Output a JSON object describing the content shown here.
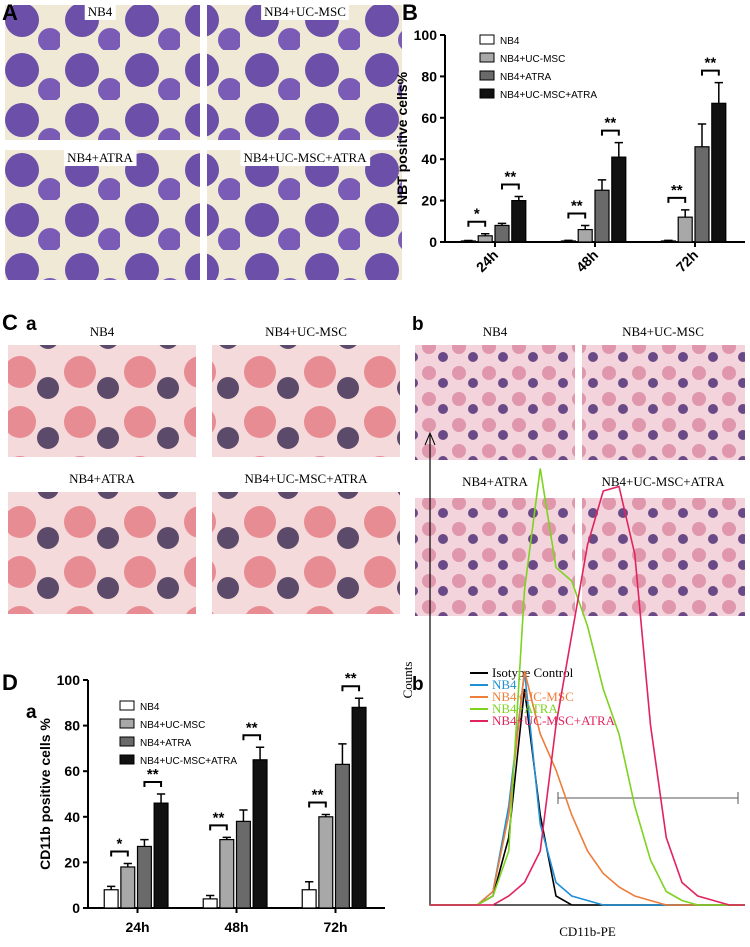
{
  "panels": {
    "A": "A",
    "B": "B",
    "C": "C",
    "Ca": "a",
    "Cb": "b",
    "D": "D",
    "Da": "a",
    "Db": "b"
  },
  "images_A": [
    "NB4",
    "NB4+UC-MSC",
    "NB4+ATRA",
    "NB4+UC-MSC+ATRA"
  ],
  "images_Ca": [
    "NB4",
    "NB4+UC-MSC",
    "NB4+ATRA",
    "NB4+UC-MSC+ATRA"
  ],
  "images_Cb": [
    "NB4",
    "NB4+UC-MSC",
    "NB4+ATRA",
    "NB4+UC-MSC+ATRA"
  ],
  "chart_data": [
    {
      "type": "bar",
      "ylabel": "NBT positive cells%",
      "categories": [
        "24h",
        "48h",
        "72h"
      ],
      "series": [
        {
          "name": "NB4",
          "color": "#ffffff",
          "values": [
            0.5,
            0.5,
            0.5
          ],
          "errors": [
            0.2,
            0.3,
            0.3
          ]
        },
        {
          "name": "NB4+UC-MSC",
          "color": "#a8a8a8",
          "values": [
            3,
            6,
            12
          ],
          "errors": [
            1,
            2,
            3.5
          ]
        },
        {
          "name": "NB4+ATRA",
          "color": "#6a6a6a",
          "values": [
            8,
            25,
            46
          ],
          "errors": [
            1,
            5,
            11
          ]
        },
        {
          "name": "NB4+UC-MSC+ATRA",
          "color": "#111111",
          "values": [
            20,
            41,
            67
          ],
          "errors": [
            2,
            7,
            10
          ]
        }
      ],
      "annotations": [
        [
          "*",
          "**"
        ],
        [
          "**",
          "**"
        ],
        [
          "**",
          "**"
        ]
      ],
      "ylim": [
        0,
        100
      ],
      "yticks": [
        0,
        20,
        40,
        60,
        80,
        100
      ]
    },
    {
      "type": "line",
      "xlabel": "CD11b-PE",
      "ylabel": "Counts",
      "x": [
        0,
        5,
        10,
        15,
        20,
        25,
        30,
        35,
        40,
        45,
        50,
        55,
        60,
        65,
        70,
        75,
        80,
        85,
        90,
        95,
        100
      ],
      "series": [
        {
          "name": "Isotype  Control",
          "color": "#000000",
          "values": [
            0,
            0,
            0,
            0,
            2,
            15,
            48,
            20,
            2,
            0,
            0,
            0,
            0,
            0,
            0,
            0,
            0,
            0,
            0,
            0,
            0
          ]
        },
        {
          "name": "NB4",
          "color": "#1f8fd6",
          "values": [
            0,
            0,
            0,
            0,
            3,
            22,
            52,
            18,
            5,
            2,
            1,
            0,
            0,
            0,
            0,
            0,
            0,
            0,
            0,
            0,
            0
          ]
        },
        {
          "name": "NB4+UC-MSC",
          "color": "#ee7d3a",
          "values": [
            0,
            0,
            0,
            0,
            3,
            20,
            52,
            38,
            30,
            20,
            12,
            7,
            4,
            2,
            1,
            0,
            0,
            0,
            0,
            0,
            0
          ]
        },
        {
          "name": "NB4+ATRA",
          "color": "#7ed321",
          "values": [
            0,
            0,
            0,
            0,
            2,
            12,
            70,
            97,
            75,
            72,
            62,
            48,
            38,
            22,
            10,
            3,
            1,
            0,
            0,
            0,
            0
          ]
        },
        {
          "name": "NB4+UC-MSC+ATRA",
          "color": "#e0245e",
          "values": [
            0,
            0,
            0,
            0,
            0,
            2,
            5,
            12,
            40,
            60,
            80,
            92,
            93,
            78,
            40,
            15,
            5,
            2,
            1,
            0,
            0
          ]
        }
      ],
      "xlim": [
        0,
        100
      ],
      "ylim": [
        0,
        100
      ]
    },
    {
      "type": "bar",
      "ylabel": "CD11b positive cells %",
      "categories": [
        "24h",
        "48h",
        "72h"
      ],
      "series": [
        {
          "name": "NB4",
          "color": "#ffffff",
          "values": [
            8,
            4,
            8
          ],
          "errors": [
            1.5,
            1.5,
            3.5
          ]
        },
        {
          "name": "NB4+UC-MSC",
          "color": "#a8a8a8",
          "values": [
            18,
            30,
            40
          ],
          "errors": [
            1.5,
            1,
            1
          ]
        },
        {
          "name": "NB4+ATRA",
          "color": "#6a6a6a",
          "values": [
            27,
            38,
            63
          ],
          "errors": [
            3,
            5,
            9
          ]
        },
        {
          "name": "NB4+UC-MSC+ATRA",
          "color": "#111111",
          "values": [
            46,
            65,
            88
          ],
          "errors": [
            4,
            5.5,
            4
          ]
        }
      ],
      "annotations": [
        [
          "*",
          "**"
        ],
        [
          "**",
          "**"
        ],
        [
          "**",
          "**"
        ]
      ],
      "ylim": [
        0,
        100
      ],
      "yticks": [
        0,
        20,
        40,
        60,
        80,
        100
      ]
    }
  ]
}
